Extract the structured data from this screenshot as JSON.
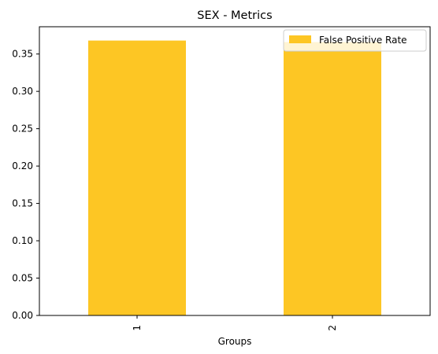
{
  "chart_data": {
    "type": "bar",
    "title": "SEX - Metrics",
    "xlabel": "Groups",
    "ylabel": "",
    "categories": [
      "1",
      "2"
    ],
    "series": [
      {
        "name": "False Positive Rate",
        "values": [
          0.368,
          0.366
        ],
        "color": "#FDC624"
      }
    ],
    "ylim": [
      0,
      0.3865
    ],
    "yticks": [
      0.0,
      0.05,
      0.1,
      0.15,
      0.2,
      0.25,
      0.3,
      0.35
    ],
    "ytick_labels": [
      "0.00",
      "0.05",
      "0.10",
      "0.15",
      "0.20",
      "0.25",
      "0.30",
      "0.35"
    ],
    "xtick_rotation": "vertical",
    "legend_position": "top-right",
    "grid": false
  }
}
